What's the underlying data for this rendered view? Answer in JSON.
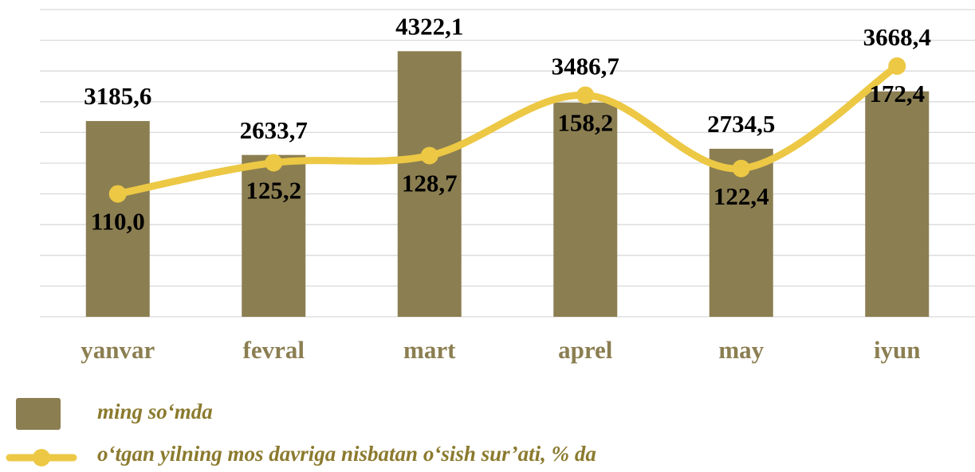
{
  "chart_data": {
    "type": "bar+line",
    "categories": [
      "yanvar",
      "fevral",
      "mart",
      "aprel",
      "may",
      "iyun"
    ],
    "series": [
      {
        "name": "ming so‘mda",
        "type": "bar",
        "color": "#8b7e51",
        "values": [
          3185.6,
          2633.7,
          4322.1,
          3486.7,
          2734.5,
          3668.4
        ],
        "value_labels": [
          "3185,6",
          "2633,7",
          "4322,1",
          "3486,7",
          "2734,5",
          "3668,4"
        ]
      },
      {
        "name": "o‘tgan yilning mos davriga nisbatan o‘sish sur’ati, % da",
        "type": "line",
        "axis": "y2",
        "color": "#ecc844",
        "values": [
          110.0,
          125.2,
          128.7,
          158.2,
          122.4,
          172.4
        ],
        "value_labels": [
          "110,0",
          "125,2",
          "128,7",
          "158,2",
          "122,4",
          "172,4"
        ]
      }
    ],
    "ylim": [
      0,
      5000
    ],
    "yticks": [
      0,
      500,
      1000,
      1500,
      2000,
      2500,
      3000,
      3500,
      4000,
      4500,
      5000
    ],
    "y2lim": [
      50,
      200
    ],
    "grid": true
  }
}
